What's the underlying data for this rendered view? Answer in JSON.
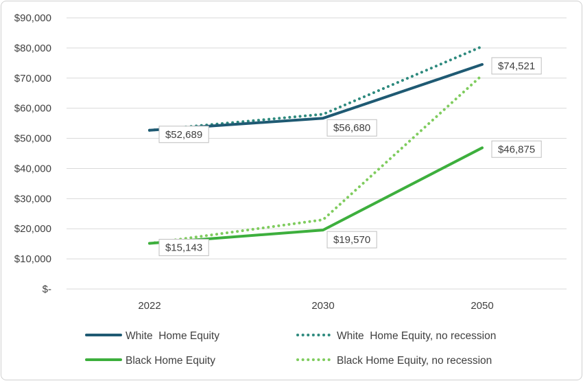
{
  "chart_data": {
    "type": "line",
    "title": "",
    "xlabel": "",
    "ylabel": "",
    "categories": [
      "2022",
      "2030",
      "2050"
    ],
    "ylim": [
      0,
      90000
    ],
    "y_ticks": [
      {
        "value": 0,
        "label": "$-"
      },
      {
        "value": 10000,
        "label": "$10,000"
      },
      {
        "value": 20000,
        "label": "$20,000"
      },
      {
        "value": 30000,
        "label": "$30,000"
      },
      {
        "value": 40000,
        "label": "$40,000"
      },
      {
        "value": 50000,
        "label": "$50,000"
      },
      {
        "value": 60000,
        "label": "$60,000"
      },
      {
        "value": 70000,
        "label": "$70,000"
      },
      {
        "value": 80000,
        "label": "$80,000"
      },
      {
        "value": 90000,
        "label": "$90,000"
      }
    ],
    "grid": true,
    "legend_position": "bottom",
    "series": [
      {
        "name": "White  Home Equity",
        "values": [
          52689,
          56680,
          74521
        ],
        "labels": [
          "$52,689",
          "$56,680",
          "$74,521"
        ],
        "color": "#1f5a73",
        "style": "solid"
      },
      {
        "name": "White  Home Equity, no recession",
        "values": [
          52689,
          58000,
          80500
        ],
        "color": "#2e8a7e",
        "style": "dotted"
      },
      {
        "name": "Black Home Equity",
        "values": [
          15143,
          19570,
          46875
        ],
        "labels": [
          "$15,143",
          "$19,570",
          "$46,875"
        ],
        "color": "#3daf3d",
        "style": "solid"
      },
      {
        "name": "Black Home Equity, no recession",
        "values": [
          15143,
          23000,
          71000
        ],
        "color": "#7fcc5e",
        "style": "dotted"
      }
    ]
  }
}
